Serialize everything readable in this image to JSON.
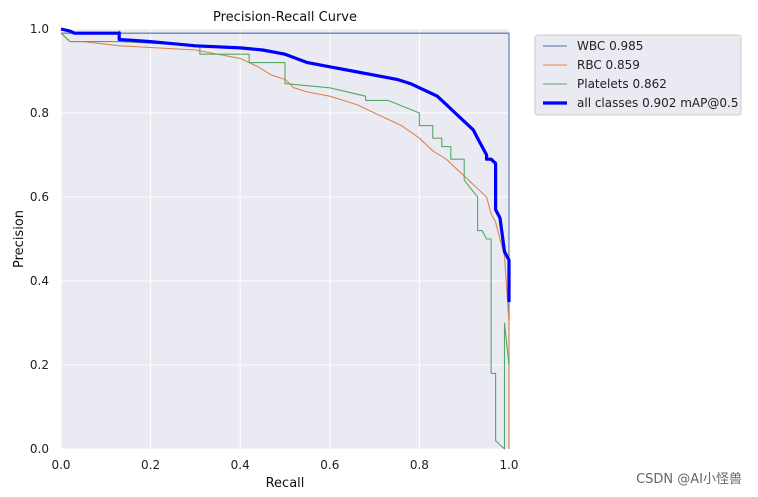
{
  "chart_data": {
    "type": "line",
    "title": "Precision-Recall Curve",
    "xlabel": "Recall",
    "ylabel": "Precision",
    "xlim": [
      0,
      1
    ],
    "ylim": [
      0,
      1
    ],
    "xticks": [
      "0.0",
      "0.2",
      "0.4",
      "0.6",
      "0.8",
      "1.0"
    ],
    "yticks": [
      "0.0",
      "0.2",
      "0.4",
      "0.6",
      "0.8",
      "1.0"
    ],
    "grid": true,
    "legend_position": "outside top-right",
    "series": [
      {
        "name": "WBC 0.985",
        "color": "#4c72b0",
        "x": [
          0,
          0.13,
          0.13,
          0.135,
          1.0,
          1.0
        ],
        "y": [
          0.99,
          0.99,
          0.995,
          0.99,
          0.99,
          0.0
        ]
      },
      {
        "name": "RBC 0.859",
        "color": "#dd8452",
        "x": [
          0,
          0.02,
          0.05,
          0.13,
          0.3,
          0.4,
          0.44,
          0.47,
          0.5,
          0.52,
          0.55,
          0.6,
          0.63,
          0.66,
          0.7,
          0.72,
          0.76,
          0.8,
          0.83,
          0.86,
          0.89,
          0.91,
          0.93,
          0.95,
          0.96,
          0.97,
          0.98,
          0.99,
          1.0,
          1.0
        ],
        "y": [
          0.99,
          0.97,
          0.97,
          0.96,
          0.95,
          0.93,
          0.91,
          0.89,
          0.88,
          0.86,
          0.85,
          0.84,
          0.83,
          0.82,
          0.8,
          0.79,
          0.77,
          0.74,
          0.71,
          0.69,
          0.66,
          0.64,
          0.62,
          0.6,
          0.56,
          0.54,
          0.5,
          0.46,
          0.3,
          0.0
        ]
      },
      {
        "name": "Platelets 0.862",
        "color": "#55a868",
        "x": [
          0,
          0.02,
          0.13,
          0.31,
          0.31,
          0.42,
          0.42,
          0.5,
          0.5,
          0.6,
          0.68,
          0.68,
          0.73,
          0.8,
          0.8,
          0.83,
          0.83,
          0.85,
          0.85,
          0.87,
          0.87,
          0.9,
          0.9,
          0.93,
          0.93,
          0.94,
          0.95,
          0.96,
          0.96,
          0.97,
          0.97,
          0.99,
          0.99,
          1.0
        ],
        "y": [
          0.99,
          0.97,
          0.97,
          0.96,
          0.94,
          0.94,
          0.92,
          0.92,
          0.87,
          0.86,
          0.84,
          0.83,
          0.83,
          0.8,
          0.77,
          0.77,
          0.74,
          0.74,
          0.72,
          0.72,
          0.69,
          0.69,
          0.64,
          0.6,
          0.52,
          0.52,
          0.5,
          0.5,
          0.18,
          0.18,
          0.02,
          0.0,
          0.3,
          0.2
        ]
      },
      {
        "name": "all classes 0.902 mAP@0.5",
        "color": "#0000ff",
        "bold": true,
        "x": [
          0,
          0.02,
          0.03,
          0.13,
          0.13,
          0.2,
          0.25,
          0.3,
          0.4,
          0.45,
          0.5,
          0.55,
          0.6,
          0.65,
          0.7,
          0.75,
          0.78,
          0.8,
          0.82,
          0.84,
          0.86,
          0.88,
          0.9,
          0.92,
          0.93,
          0.94,
          0.95,
          0.95,
          0.96,
          0.97,
          0.97,
          0.98,
          0.99,
          1.0,
          1.0
        ],
        "y": [
          1.0,
          0.995,
          0.99,
          0.99,
          0.975,
          0.97,
          0.965,
          0.96,
          0.955,
          0.95,
          0.94,
          0.92,
          0.91,
          0.9,
          0.89,
          0.88,
          0.87,
          0.86,
          0.85,
          0.84,
          0.82,
          0.8,
          0.78,
          0.76,
          0.74,
          0.72,
          0.7,
          0.69,
          0.69,
          0.68,
          0.57,
          0.55,
          0.47,
          0.45,
          0.35
        ]
      }
    ]
  },
  "watermark": "CSDN @AI小怪兽"
}
